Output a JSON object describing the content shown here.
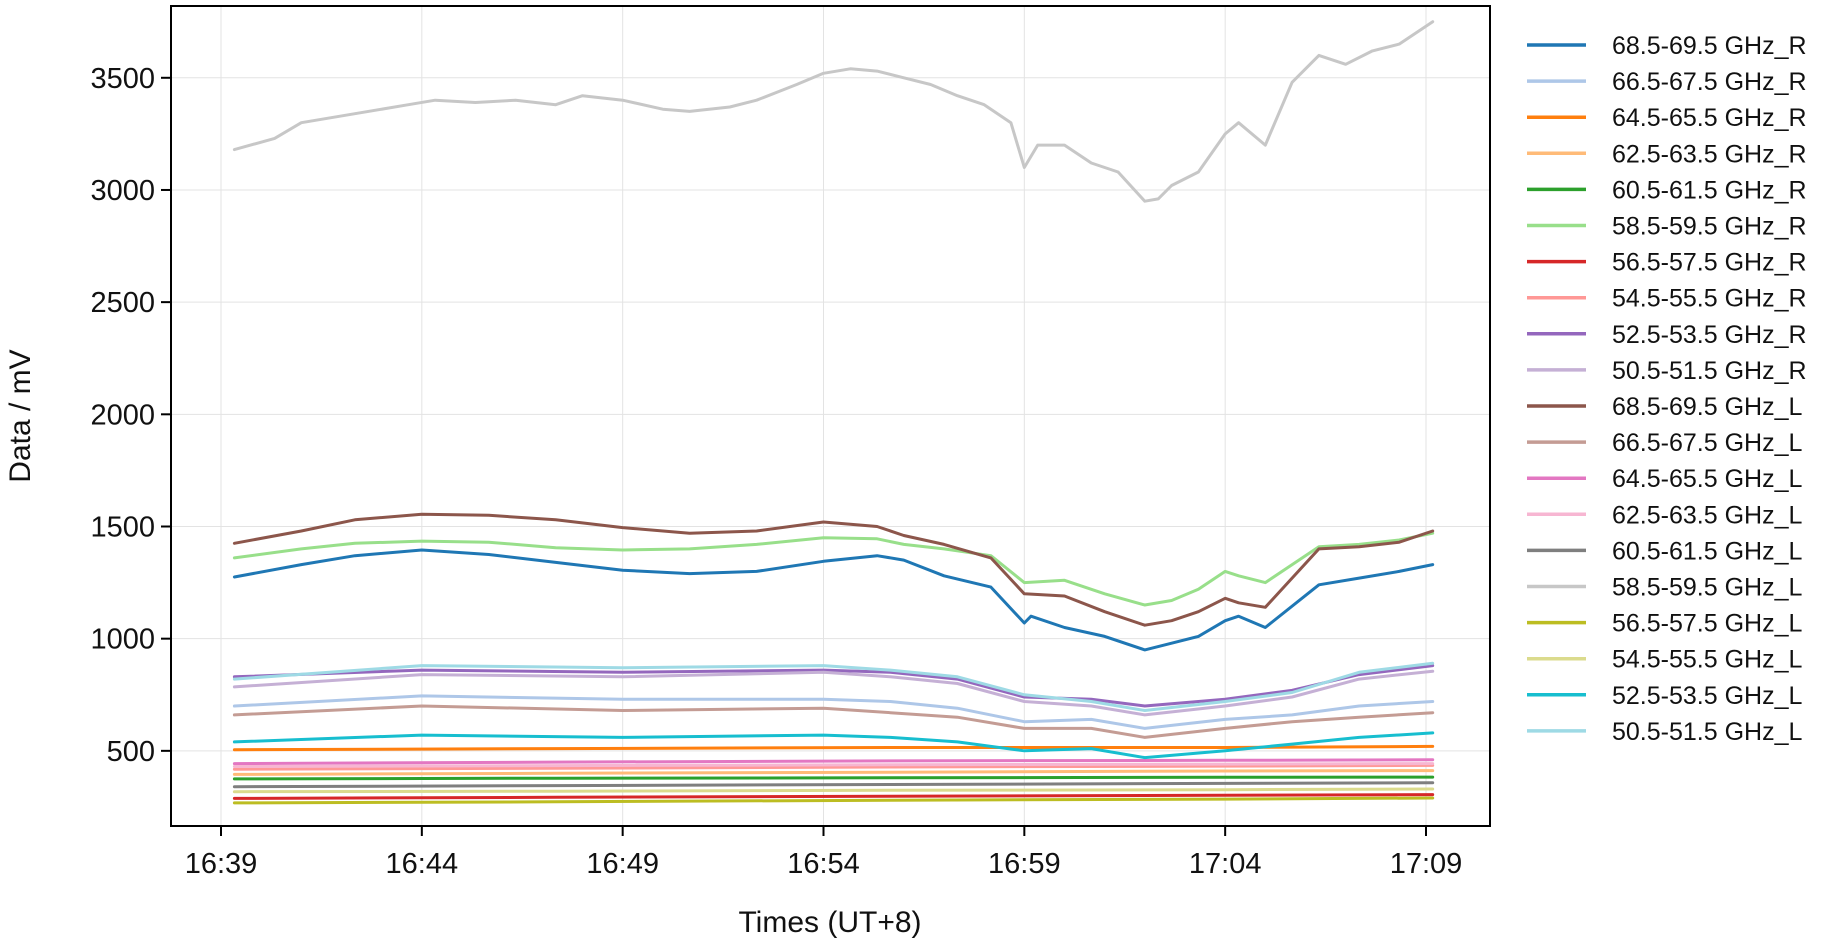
{
  "chart_data": {
    "type": "line",
    "xlabel": "Times (UT+8)",
    "ylabel": "Data / mV",
    "ylim": [
      165,
      3820
    ],
    "xlim": [
      0,
      1860
    ],
    "x_unit": "seconds after 16:39",
    "x_ticks": [
      {
        "label": "16:39",
        "value": 0
      },
      {
        "label": "16:44",
        "value": 300
      },
      {
        "label": "16:49",
        "value": 600
      },
      {
        "label": "16:54",
        "value": 900
      },
      {
        "label": "16:59",
        "value": 1200
      },
      {
        "label": "17:04",
        "value": 1500
      },
      {
        "label": "17:09",
        "value": 1800
      }
    ],
    "y_ticks": [
      {
        "label": "500",
        "value": 500
      },
      {
        "label": "1000",
        "value": 1000
      },
      {
        "label": "1500",
        "value": 1500
      },
      {
        "label": "2000",
        "value": 2000
      },
      {
        "label": "2500",
        "value": 2500
      },
      {
        "label": "3000",
        "value": 3000
      },
      {
        "label": "3500",
        "value": 3500
      }
    ],
    "grid": true,
    "legend_position": "right-outside",
    "series": [
      {
        "name": "68.5-69.5 GHz_R",
        "color": "#1f77b4",
        "x": [
          20,
          120,
          200,
          300,
          400,
          500,
          600,
          700,
          800,
          900,
          980,
          1020,
          1080,
          1150,
          1200,
          1210,
          1260,
          1320,
          1380,
          1420,
          1460,
          1500,
          1520,
          1560,
          1640,
          1700,
          1760,
          1810
        ],
        "y": [
          1275,
          1330,
          1370,
          1395,
          1375,
          1340,
          1305,
          1290,
          1300,
          1345,
          1370,
          1350,
          1280,
          1230,
          1070,
          1100,
          1050,
          1010,
          950,
          980,
          1010,
          1080,
          1100,
          1050,
          1240,
          1270,
          1300,
          1330
        ]
      },
      {
        "name": "66.5-67.5 GHz_R",
        "color": "#aec7e8",
        "x": [
          20,
          300,
          600,
          900,
          1000,
          1100,
          1200,
          1300,
          1380,
          1500,
          1600,
          1700,
          1810
        ],
        "y": [
          700,
          745,
          730,
          730,
          720,
          690,
          630,
          640,
          600,
          640,
          660,
          700,
          720
        ]
      },
      {
        "name": "64.5-65.5 GHz_R",
        "color": "#ff7f0e",
        "x": [
          20,
          500,
          1000,
          1500,
          1810
        ],
        "y": [
          505,
          510,
          515,
          515,
          520
        ]
      },
      {
        "name": "62.5-63.5 GHz_R",
        "color": "#ffbb78",
        "x": [
          20,
          500,
          1000,
          1500,
          1810
        ],
        "y": [
          395,
          400,
          405,
          410,
          412
        ]
      },
      {
        "name": "60.5-61.5 GHz_R",
        "color": "#2ca02c",
        "x": [
          20,
          500,
          1000,
          1500,
          1810
        ],
        "y": [
          375,
          378,
          380,
          382,
          383
        ]
      },
      {
        "name": "58.5-59.5 GHz_R",
        "color": "#98df8a",
        "x": [
          20,
          120,
          200,
          300,
          400,
          500,
          600,
          700,
          800,
          900,
          980,
          1020,
          1080,
          1150,
          1200,
          1260,
          1320,
          1380,
          1420,
          1460,
          1500,
          1520,
          1560,
          1640,
          1700,
          1760,
          1810
        ],
        "y": [
          1360,
          1400,
          1425,
          1435,
          1430,
          1405,
          1395,
          1400,
          1420,
          1450,
          1445,
          1420,
          1400,
          1370,
          1250,
          1260,
          1200,
          1150,
          1170,
          1220,
          1300,
          1280,
          1250,
          1410,
          1420,
          1440,
          1470
        ]
      },
      {
        "name": "56.5-57.5 GHz_R",
        "color": "#d62728",
        "x": [
          20,
          500,
          1000,
          1500,
          1810
        ],
        "y": [
          288,
          293,
          298,
          302,
          305
        ]
      },
      {
        "name": "54.5-55.5 GHz_R",
        "color": "#ff9896",
        "x": [
          20,
          500,
          1000,
          1500,
          1810
        ],
        "y": [
          418,
          422,
          428,
          432,
          435
        ]
      },
      {
        "name": "52.5-53.5 GHz_R",
        "color": "#9467bd",
        "x": [
          20,
          300,
          600,
          900,
          1000,
          1100,
          1200,
          1300,
          1380,
          1500,
          1600,
          1700,
          1810
        ],
        "y": [
          830,
          860,
          850,
          860,
          850,
          820,
          740,
          730,
          700,
          730,
          770,
          840,
          880
        ]
      },
      {
        "name": "50.5-51.5 GHz_R",
        "color": "#c5b0d5",
        "x": [
          20,
          300,
          600,
          900,
          1000,
          1100,
          1200,
          1300,
          1380,
          1500,
          1600,
          1700,
          1810
        ],
        "y": [
          785,
          840,
          830,
          850,
          830,
          800,
          720,
          700,
          660,
          700,
          740,
          820,
          855
        ]
      },
      {
        "name": "68.5-69.5 GHz_L",
        "color": "#8c564b",
        "x": [
          20,
          120,
          200,
          300,
          400,
          500,
          600,
          700,
          800,
          900,
          980,
          1020,
          1080,
          1150,
          1200,
          1260,
          1320,
          1380,
          1420,
          1460,
          1500,
          1520,
          1560,
          1640,
          1700,
          1760,
          1810
        ],
        "y": [
          1425,
          1480,
          1530,
          1555,
          1550,
          1530,
          1495,
          1470,
          1480,
          1520,
          1500,
          1460,
          1420,
          1360,
          1200,
          1190,
          1120,
          1060,
          1080,
          1120,
          1180,
          1160,
          1140,
          1400,
          1410,
          1430,
          1480
        ]
      },
      {
        "name": "66.5-67.5 GHz_L",
        "color": "#c49c94",
        "x": [
          20,
          300,
          600,
          900,
          1000,
          1100,
          1200,
          1300,
          1380,
          1500,
          1600,
          1700,
          1810
        ],
        "y": [
          660,
          700,
          680,
          690,
          670,
          650,
          600,
          600,
          560,
          600,
          630,
          650,
          670
        ]
      },
      {
        "name": "64.5-65.5 GHz_L",
        "color": "#e377c2",
        "x": [
          20,
          500,
          1000,
          1500,
          1810
        ],
        "y": [
          443,
          450,
          455,
          458,
          460
        ]
      },
      {
        "name": "62.5-63.5 GHz_L",
        "color": "#f7b6d2",
        "x": [
          20,
          500,
          1000,
          1500,
          1810
        ],
        "y": [
          430,
          434,
          438,
          441,
          443
        ]
      },
      {
        "name": "60.5-61.5 GHz_L",
        "color": "#7f7f7f",
        "x": [
          20,
          500,
          1000,
          1500,
          1810
        ],
        "y": [
          340,
          345,
          350,
          355,
          358
        ]
      },
      {
        "name": "58.5-59.5 GHz_L",
        "color": "#c7c7c7",
        "x": [
          20,
          80,
          120,
          160,
          200,
          280,
          320,
          380,
          440,
          500,
          540,
          600,
          660,
          700,
          760,
          800,
          860,
          900,
          940,
          980,
          1020,
          1060,
          1100,
          1140,
          1180,
          1200,
          1220,
          1260,
          1300,
          1340,
          1380,
          1400,
          1420,
          1460,
          1500,
          1520,
          1560,
          1600,
          1640,
          1680,
          1720,
          1760,
          1810
        ],
        "y": [
          3180,
          3230,
          3300,
          3320,
          3340,
          3380,
          3400,
          3390,
          3400,
          3380,
          3420,
          3400,
          3360,
          3350,
          3370,
          3400,
          3470,
          3520,
          3540,
          3530,
          3500,
          3470,
          3420,
          3380,
          3300,
          3100,
          3200,
          3200,
          3120,
          3080,
          2950,
          2960,
          3020,
          3080,
          3250,
          3300,
          3200,
          3480,
          3600,
          3560,
          3620,
          3650,
          3750
        ]
      },
      {
        "name": "56.5-57.5 GHz_L",
        "color": "#bcbd22",
        "x": [
          20,
          500,
          1000,
          1500,
          1810
        ],
        "y": [
          268,
          273,
          280,
          285,
          290
        ]
      },
      {
        "name": "54.5-55.5 GHz_L",
        "color": "#dbdb8d",
        "x": [
          20,
          500,
          1000,
          1500,
          1810
        ],
        "y": [
          318,
          320,
          324,
          327,
          330
        ]
      },
      {
        "name": "52.5-53.5 GHz_L",
        "color": "#17becf",
        "x": [
          20,
          300,
          600,
          900,
          1000,
          1100,
          1200,
          1300,
          1380,
          1500,
          1600,
          1700,
          1810
        ],
        "y": [
          540,
          570,
          560,
          570,
          560,
          540,
          500,
          510,
          470,
          500,
          530,
          560,
          580
        ]
      },
      {
        "name": "50.5-51.5 GHz_L",
        "color": "#9edae5",
        "x": [
          20,
          300,
          600,
          900,
          1000,
          1100,
          1200,
          1300,
          1380,
          1500,
          1600,
          1700,
          1810
        ],
        "y": [
          820,
          880,
          870,
          880,
          860,
          830,
          750,
          720,
          680,
          720,
          760,
          850,
          890
        ]
      }
    ]
  }
}
